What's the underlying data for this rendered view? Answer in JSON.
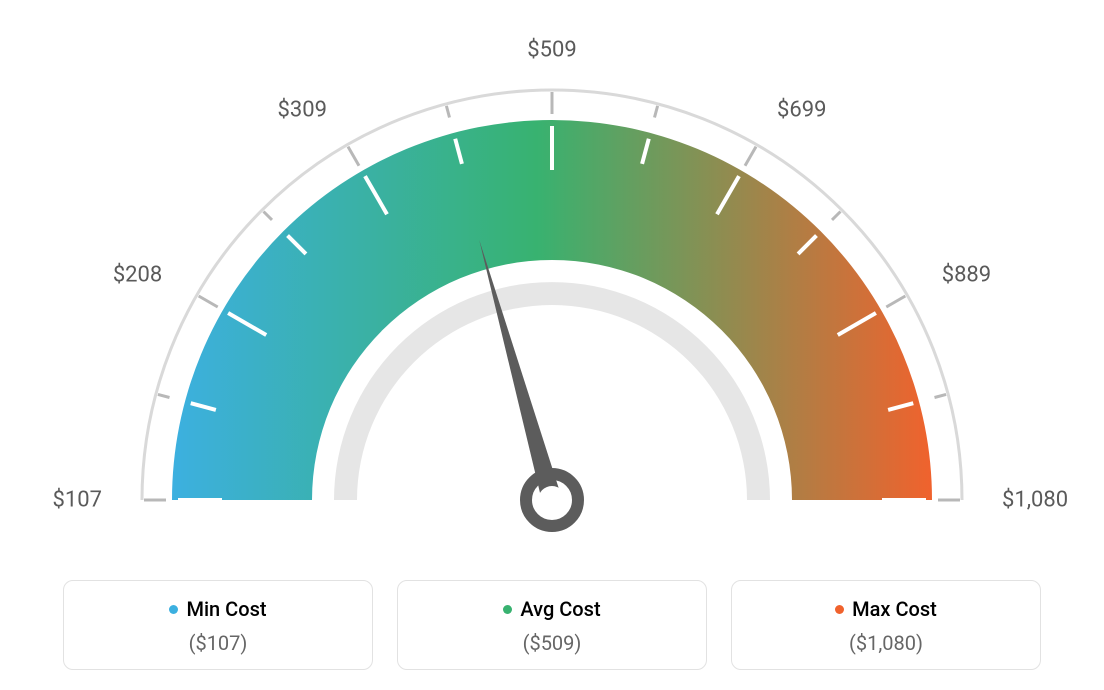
{
  "gauge": {
    "type": "gauge",
    "min_value": 107,
    "max_value": 1080,
    "avg_value": 509,
    "needle_value": 509,
    "tick_labels": [
      "$107",
      "$208",
      "$309",
      "$509",
      "$699",
      "$889",
      "$1,080"
    ],
    "tick_angles_deg": [
      -90,
      -60,
      -30,
      0,
      30,
      60,
      90
    ],
    "gradient_colors": {
      "start": "#3cb0e0",
      "mid": "#38b270",
      "end": "#f0622d"
    },
    "outer_arc_color": "#d9d9d9",
    "inner_arc_color": "#e6e6e6",
    "tick_color_inner": "#ffffff",
    "tick_color_outer": "#b8b8b8",
    "needle_color": "#5c5c5c",
    "background_color": "#ffffff",
    "label_fontsize": 22,
    "label_color": "#5a5a5a",
    "outer_radius": 410,
    "band_outer_radius": 380,
    "band_inner_radius": 240,
    "inner_arc_outer_radius": 218,
    "inner_arc_inner_radius": 195
  },
  "legend": {
    "min": {
      "title": "Min Cost",
      "value": "($107)",
      "color": "#3cb0e0"
    },
    "avg": {
      "title": "Avg Cost",
      "value": "($509)",
      "color": "#38b270"
    },
    "max": {
      "title": "Max Cost",
      "value": "($1,080)",
      "color": "#f0622d"
    },
    "card_border_color": "#e2e2e2",
    "card_border_radius": 10,
    "title_fontsize": 20,
    "value_fontsize": 20,
    "value_color": "#666666"
  }
}
